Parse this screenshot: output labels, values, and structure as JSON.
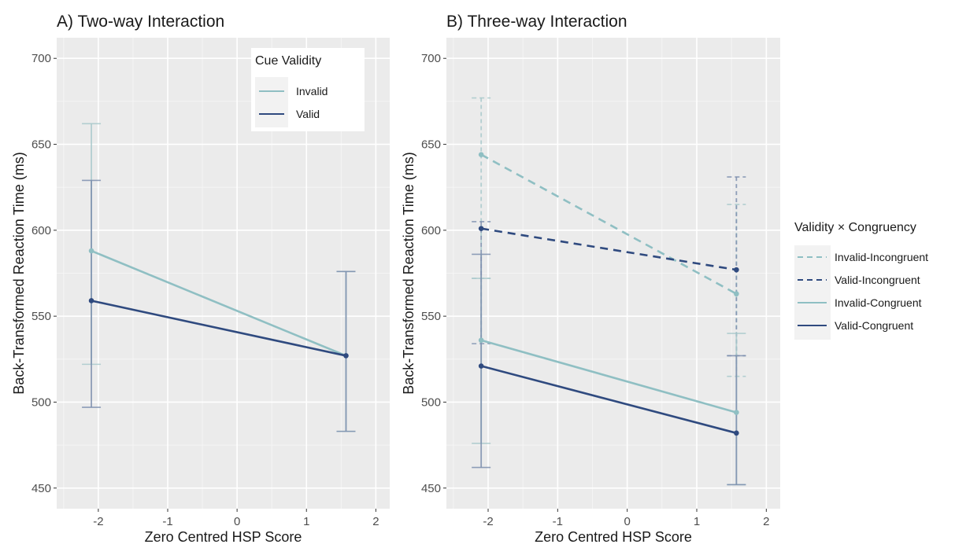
{
  "chart_data": [
    {
      "type": "line",
      "title": "A) Two-way Interaction",
      "xlabel": "Zero Centred HSP Score",
      "ylabel": "Back-Transformed Reaction Time (ms)",
      "xlim": [
        -2.6,
        2.2
      ],
      "ylim": [
        438,
        712
      ],
      "xticks": [
        -2,
        -1,
        0,
        1,
        2
      ],
      "xtick_labels": [
        "-2",
        "-1",
        "0",
        "1",
        "2"
      ],
      "yticks": [
        450,
        500,
        550,
        600,
        650,
        700
      ],
      "ytick_labels": [
        "450",
        "500",
        "550",
        "600",
        "650",
        "700"
      ],
      "grid": true,
      "legend": {
        "title": "Cue Validity",
        "placement": "top-right-inside"
      },
      "series": [
        {
          "name": "Invalid",
          "color": "#8fbfc3",
          "dashed": false,
          "x": [
            -2.1,
            1.57
          ],
          "y": [
            588,
            527
          ],
          "ci_low": [
            522,
            483
          ],
          "ci_high": [
            662,
            576
          ]
        },
        {
          "name": "Valid",
          "color": "#2f4a7f",
          "dashed": false,
          "x": [
            -2.1,
            1.57
          ],
          "y": [
            559,
            527
          ],
          "ci_low": [
            497,
            483
          ],
          "ci_high": [
            629,
            576
          ]
        }
      ]
    },
    {
      "type": "line",
      "title": "B) Three-way Interaction",
      "xlabel": "Zero Centred HSP Score",
      "ylabel": "Back-Transformed Reaction Time (ms)",
      "xlim": [
        -2.6,
        2.2
      ],
      "ylim": [
        438,
        712
      ],
      "xticks": [
        -2,
        -1,
        0,
        1,
        2
      ],
      "xtick_labels": [
        "-2",
        "-1",
        "0",
        "1",
        "2"
      ],
      "yticks": [
        450,
        500,
        550,
        600,
        650,
        700
      ],
      "ytick_labels": [
        "450",
        "500",
        "550",
        "600",
        "650",
        "700"
      ],
      "grid": true,
      "legend": {
        "title": "Validity × Congruency",
        "placement": "right-outside"
      },
      "series": [
        {
          "name": "Invalid-Incongruent",
          "color": "#8fbfc3",
          "dashed": true,
          "x": [
            -2.1,
            1.57
          ],
          "y": [
            644,
            563
          ],
          "ci_low": [
            572,
            515
          ],
          "ci_high": [
            677,
            615
          ]
        },
        {
          "name": "Valid-Incongruent",
          "color": "#2f4a7f",
          "dashed": true,
          "x": [
            -2.1,
            1.57
          ],
          "y": [
            601,
            577
          ],
          "ci_low": [
            534,
            527
          ],
          "ci_high": [
            605,
            631
          ]
        },
        {
          "name": "Invalid-Congruent",
          "color": "#8fbfc3",
          "dashed": false,
          "x": [
            -2.1,
            1.57
          ],
          "y": [
            536,
            494
          ],
          "ci_low": [
            476,
            452
          ],
          "ci_high": [
            572,
            540
          ]
        },
        {
          "name": "Valid-Congruent",
          "color": "#2f4a7f",
          "dashed": false,
          "x": [
            -2.1,
            1.57
          ],
          "y": [
            521,
            482
          ],
          "ci_low": [
            462,
            452
          ],
          "ci_high": [
            586,
            527
          ]
        }
      ]
    }
  ]
}
